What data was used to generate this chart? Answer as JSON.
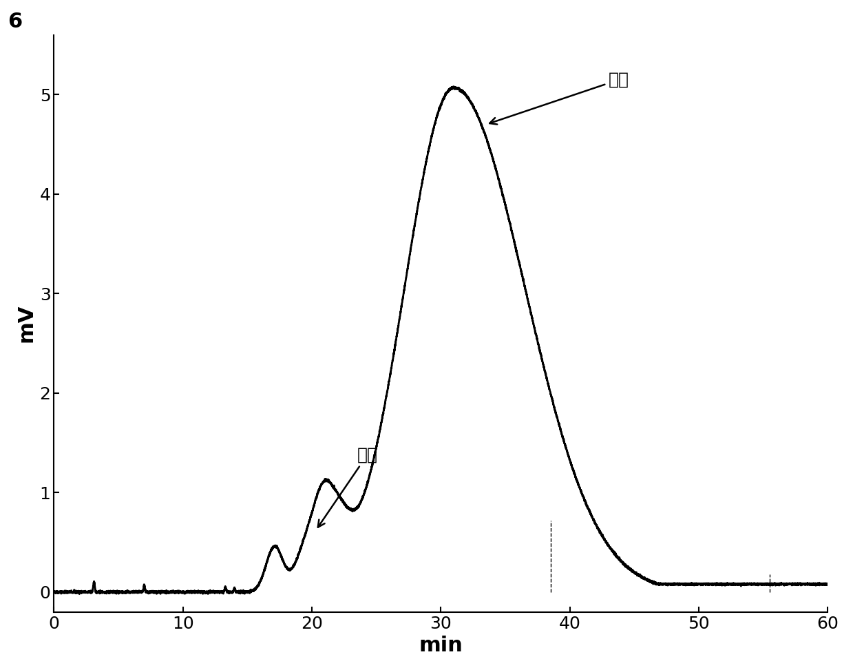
{
  "title_label": "6",
  "xlabel": "min",
  "ylabel": "mV",
  "xlim": [
    0,
    60
  ],
  "ylim": [
    -0.2,
    5.6
  ],
  "yticks": [
    0,
    1,
    2,
    3,
    4,
    5
  ],
  "xticks": [
    0,
    10,
    20,
    30,
    40,
    50,
    60
  ],
  "line_color": "#000000",
  "line_width": 2.0,
  "bg_color": "#ffffff",
  "annotation_cis_text": "順式",
  "annotation_trans_text": "反式",
  "vline1_x": 38.5,
  "vline1_ytop": 0.72,
  "vline2_x": 55.5,
  "vline2_ytop": 0.18,
  "xlabel_fontsize": 22,
  "ylabel_fontsize": 22,
  "tick_fontsize": 18,
  "annotation_fontsize": 18,
  "title_fontsize": 22
}
